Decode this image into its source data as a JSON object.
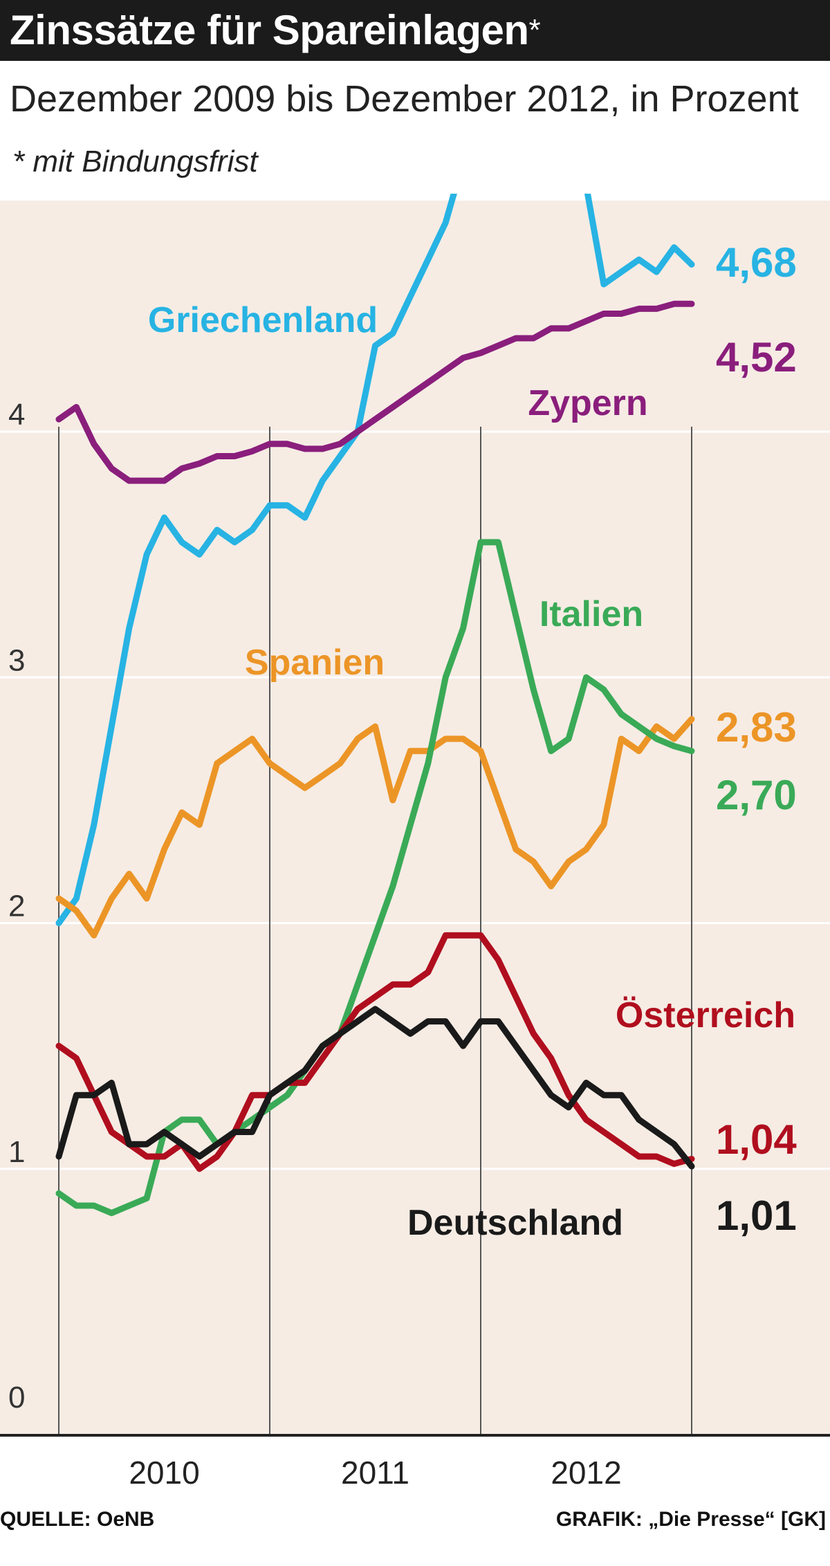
{
  "header": {
    "title": "Zinssätze für Spareinlagen",
    "title_mark": "*",
    "subtitle": "Dezember 2009 bis Dezember 2012, in Prozent",
    "footnote": "* mit Bindungsfrist"
  },
  "footer": {
    "source": "QUELLE: OeNB",
    "credit": "GRAFIK: „Die Presse“ [GK]"
  },
  "colors": {
    "title_bg": "#1b1b1b",
    "plot_bg": "#f6ece4",
    "gridline": "#ffffff",
    "year_line": "#555555"
  },
  "chart_data": {
    "type": "line",
    "title": "Zinssätze für Spareinlagen",
    "subtitle": "Dezember 2009 bis Dezember 2012, in Prozent",
    "xlabel": "",
    "ylabel": "",
    "ylim": [
      0,
      4.9
    ],
    "yticks": [
      0,
      1,
      2,
      3,
      4
    ],
    "ytick_labels": [
      "0",
      "1",
      "2",
      "3",
      "4"
    ],
    "xlim": [
      0,
      36
    ],
    "x_start": "Dezember 2009",
    "x_end": "Dezember 2012",
    "x_unit": "months",
    "year_labels": [
      "2010",
      "2011",
      "2012"
    ],
    "grid": true,
    "series": [
      {
        "name": "Griechenland",
        "color": "#27b3e3",
        "end_label": "4,68",
        "values": [
          2.0,
          2.1,
          2.4,
          2.8,
          3.2,
          3.5,
          3.65,
          3.55,
          3.5,
          3.6,
          3.55,
          3.6,
          3.7,
          3.7,
          3.65,
          3.8,
          3.9,
          4.0,
          4.35,
          4.4,
          4.55,
          4.7,
          4.85,
          5.1,
          5.05,
          5.15,
          5.2,
          5.25,
          5.2,
          5.3,
          5.0,
          4.6,
          4.65,
          4.7,
          4.65,
          4.75,
          4.68
        ]
      },
      {
        "name": "Zypern",
        "color": "#8a1e7c",
        "end_label": "4,52",
        "values": [
          4.05,
          4.1,
          3.95,
          3.85,
          3.8,
          3.8,
          3.8,
          3.85,
          3.87,
          3.9,
          3.9,
          3.92,
          3.95,
          3.95,
          3.93,
          3.93,
          3.95,
          4.0,
          4.05,
          4.1,
          4.15,
          4.2,
          4.25,
          4.3,
          4.32,
          4.35,
          4.38,
          4.38,
          4.42,
          4.42,
          4.45,
          4.48,
          4.48,
          4.5,
          4.5,
          4.52,
          4.52
        ]
      },
      {
        "name": "Spanien",
        "color": "#ec9527",
        "end_label": "2,83",
        "values": [
          2.1,
          2.05,
          1.95,
          2.1,
          2.2,
          2.1,
          2.3,
          2.45,
          2.4,
          2.65,
          2.7,
          2.75,
          2.65,
          2.6,
          2.55,
          2.6,
          2.65,
          2.75,
          2.8,
          2.5,
          2.7,
          2.7,
          2.75,
          2.75,
          2.7,
          2.5,
          2.3,
          2.25,
          2.15,
          2.25,
          2.3,
          2.4,
          2.75,
          2.7,
          2.8,
          2.75,
          2.83
        ]
      },
      {
        "name": "Italien",
        "color": "#3aaa57",
        "end_label": "2,70",
        "values": [
          0.9,
          0.85,
          0.85,
          0.82,
          0.85,
          0.88,
          1.15,
          1.2,
          1.2,
          1.1,
          1.15,
          1.2,
          1.25,
          1.3,
          1.4,
          1.5,
          1.55,
          1.75,
          1.95,
          2.15,
          2.4,
          2.65,
          3.0,
          3.2,
          3.55,
          3.55,
          3.25,
          2.95,
          2.7,
          2.75,
          3.0,
          2.95,
          2.85,
          2.8,
          2.75,
          2.72,
          2.7
        ]
      },
      {
        "name": "Österreich",
        "color": "#b00e1e",
        "end_label": "1,04",
        "values": [
          1.5,
          1.45,
          1.3,
          1.15,
          1.1,
          1.05,
          1.05,
          1.1,
          1.0,
          1.05,
          1.15,
          1.3,
          1.3,
          1.35,
          1.35,
          1.45,
          1.55,
          1.65,
          1.7,
          1.75,
          1.75,
          1.8,
          1.95,
          1.95,
          1.95,
          1.85,
          1.7,
          1.55,
          1.45,
          1.3,
          1.2,
          1.15,
          1.1,
          1.05,
          1.05,
          1.02,
          1.04
        ]
      },
      {
        "name": "Deutschland",
        "color": "#1a1a1a",
        "end_label": "1,01",
        "values": [
          1.05,
          1.3,
          1.3,
          1.35,
          1.1,
          1.1,
          1.15,
          1.1,
          1.05,
          1.1,
          1.15,
          1.15,
          1.3,
          1.35,
          1.4,
          1.5,
          1.55,
          1.6,
          1.65,
          1.6,
          1.55,
          1.6,
          1.6,
          1.5,
          1.6,
          1.6,
          1.5,
          1.4,
          1.3,
          1.25,
          1.35,
          1.3,
          1.3,
          1.2,
          1.15,
          1.1,
          1.01
        ]
      }
    ]
  }
}
